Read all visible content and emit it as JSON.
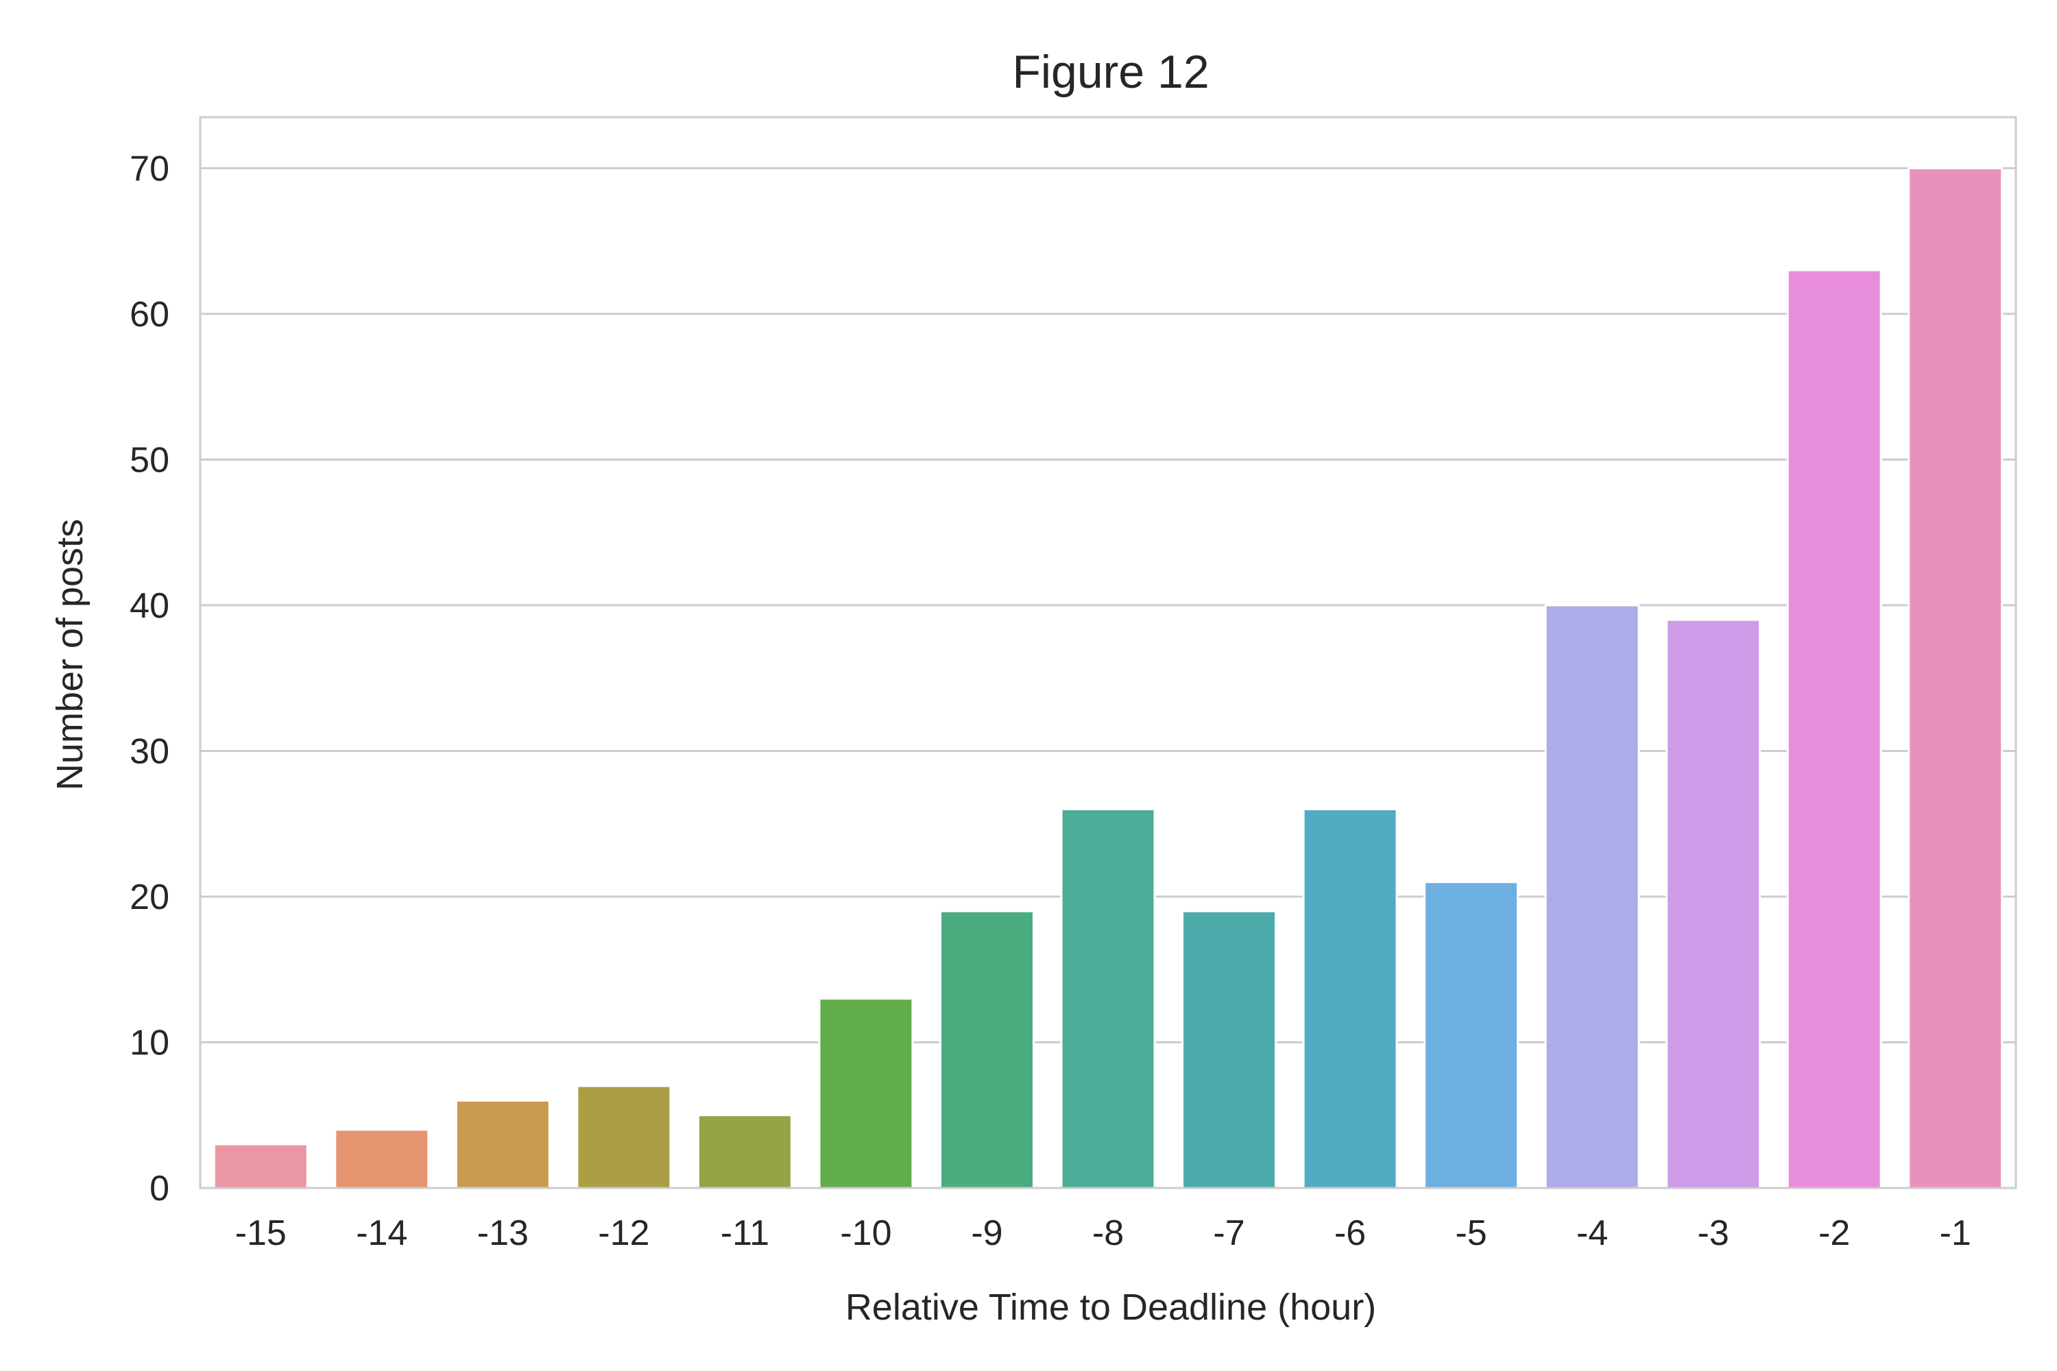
{
  "chart_data": {
    "type": "bar",
    "title": "Figure 12",
    "xlabel": "Relative Time to Deadline (hour)",
    "ylabel": "Number of posts",
    "categories": [
      "-15",
      "-14",
      "-13",
      "-12",
      "-11",
      "-10",
      "-9",
      "-8",
      "-7",
      "-6",
      "-5",
      "-4",
      "-3",
      "-2",
      "-1"
    ],
    "values": [
      3,
      4,
      6,
      7,
      5,
      13,
      19,
      26,
      19,
      26,
      21,
      40,
      39,
      63,
      70
    ],
    "colors": [
      "#ea96a3",
      "#e59470",
      "#c99b4f",
      "#aa9d44",
      "#92a446",
      "#61ad4b",
      "#4aac7f",
      "#4bad98",
      "#4cabaa",
      "#50abc3",
      "#6eafe2",
      "#aeabea",
      "#cf9ae8",
      "#e78ddb",
      "#e991bd"
    ],
    "ylim": [
      0,
      73.5
    ],
    "yticks": [
      0,
      10,
      20,
      30,
      40,
      50,
      60,
      70
    ],
    "grid": true,
    "legend": "none"
  }
}
